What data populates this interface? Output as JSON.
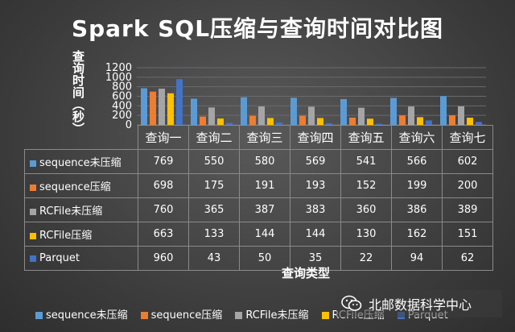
{
  "chart_data": {
    "type": "bar",
    "title": "Spark SQL压缩与查询时间对比图",
    "ylabel": "查询时间（秒）",
    "xlabel": "查询类型",
    "ylim": [
      0,
      1200
    ],
    "yticks": [
      0,
      200,
      400,
      600,
      800,
      1000,
      1200
    ],
    "legend_position": "bottom",
    "data_table": true,
    "categories": [
      "查询一",
      "查询二",
      "查询三",
      "查询四",
      "查询五",
      "查询六",
      "查询七"
    ],
    "series": [
      {
        "name": "sequence未压缩",
        "color": "#5b9bd5",
        "values": [
          769,
          550,
          580,
          569,
          541,
          566,
          602
        ]
      },
      {
        "name": "sequence压缩",
        "color": "#ed7d31",
        "values": [
          698,
          175,
          191,
          193,
          152,
          199,
          200
        ]
      },
      {
        "name": "RCFile未压缩",
        "color": "#a5a5a5",
        "values": [
          760,
          365,
          387,
          383,
          360,
          386,
          389
        ]
      },
      {
        "name": "RCFile压缩",
        "color": "#ffc000",
        "values": [
          663,
          133,
          144,
          144,
          130,
          162,
          151
        ]
      },
      {
        "name": "Parquet",
        "color": "#4472c4",
        "values": [
          960,
          43,
          50,
          35,
          22,
          94,
          62
        ]
      }
    ]
  },
  "watermark": {
    "text": "北邮数据科学中心",
    "icon": "wechat-icon"
  }
}
